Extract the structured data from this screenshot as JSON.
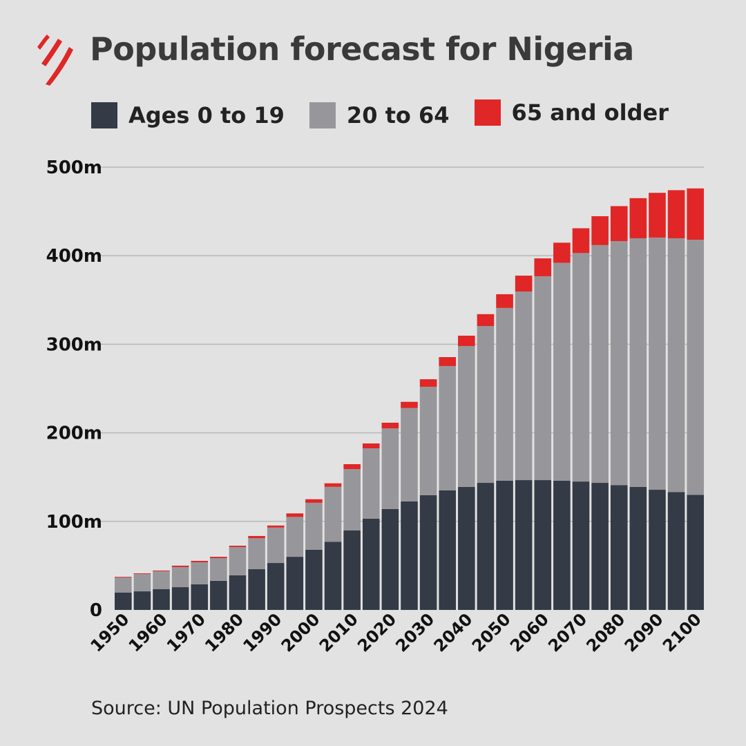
{
  "chart_data": {
    "type": "bar",
    "stacked": true,
    "title": "Population forecast for Nigeria",
    "source": "Source: UN Population Prospects 2024",
    "categories": [
      1950,
      1955,
      1960,
      1965,
      1970,
      1975,
      1980,
      1985,
      1990,
      1995,
      2000,
      2005,
      2010,
      2015,
      2020,
      2025,
      2030,
      2035,
      2040,
      2045,
      2050,
      2055,
      2060,
      2065,
      2070,
      2075,
      2080,
      2085,
      2090,
      2095,
      2100
    ],
    "x_tick_labels": [
      "1950",
      "1960",
      "1970",
      "1980",
      "1990",
      "2000",
      "2010",
      "2020",
      "2030",
      "2040",
      "2050",
      "2060",
      "2070",
      "2080",
      "2090",
      "2100"
    ],
    "y_tick_labels": [
      "0",
      "100m",
      "200m",
      "300m",
      "400m",
      "500m"
    ],
    "y_ticks": [
      0,
      100,
      200,
      300,
      400,
      500
    ],
    "ylim": [
      0,
      500
    ],
    "unit": "millions",
    "grid": true,
    "legend_position": "top",
    "series": [
      {
        "name": "Ages 0 to 19",
        "color": "#343a46",
        "values": [
          19.5,
          21,
          23.4,
          25.7,
          28.9,
          32.8,
          39,
          46,
          53,
          60,
          68,
          77,
          89.7,
          103,
          114,
          122.5,
          129.5,
          135,
          139,
          143.5,
          146,
          146.6,
          146.6,
          146,
          145,
          143.5,
          141,
          139,
          135.7,
          133,
          130
        ]
      },
      {
        "name": "20 to 64",
        "color": "#97979b",
        "values": [
          17.2,
          19.5,
          20.3,
          22.7,
          24.9,
          25.7,
          32,
          35,
          40,
          45,
          53,
          62,
          69.3,
          79.5,
          91,
          105.5,
          122.5,
          140.4,
          159,
          177.1,
          195,
          213,
          230.2,
          246,
          258,
          268.5,
          275.5,
          280.7,
          284.8,
          286.7,
          288
        ]
      },
      {
        "name": "65 and older",
        "color": "#e02626",
        "values": [
          0.7,
          0.8,
          0.8,
          1.6,
          1.6,
          1.5,
          1.5,
          2.5,
          2.3,
          4,
          4,
          4,
          5.6,
          5.5,
          6.4,
          7,
          8.5,
          10.1,
          11.7,
          13.4,
          15.5,
          17.9,
          20.2,
          22.7,
          28,
          32.6,
          39.5,
          45.3,
          50.5,
          54.3,
          58
        ]
      }
    ]
  },
  "colors": {
    "background": "#e2e2e2",
    "logo": "#e02626",
    "grid": "#b8b8b8"
  }
}
